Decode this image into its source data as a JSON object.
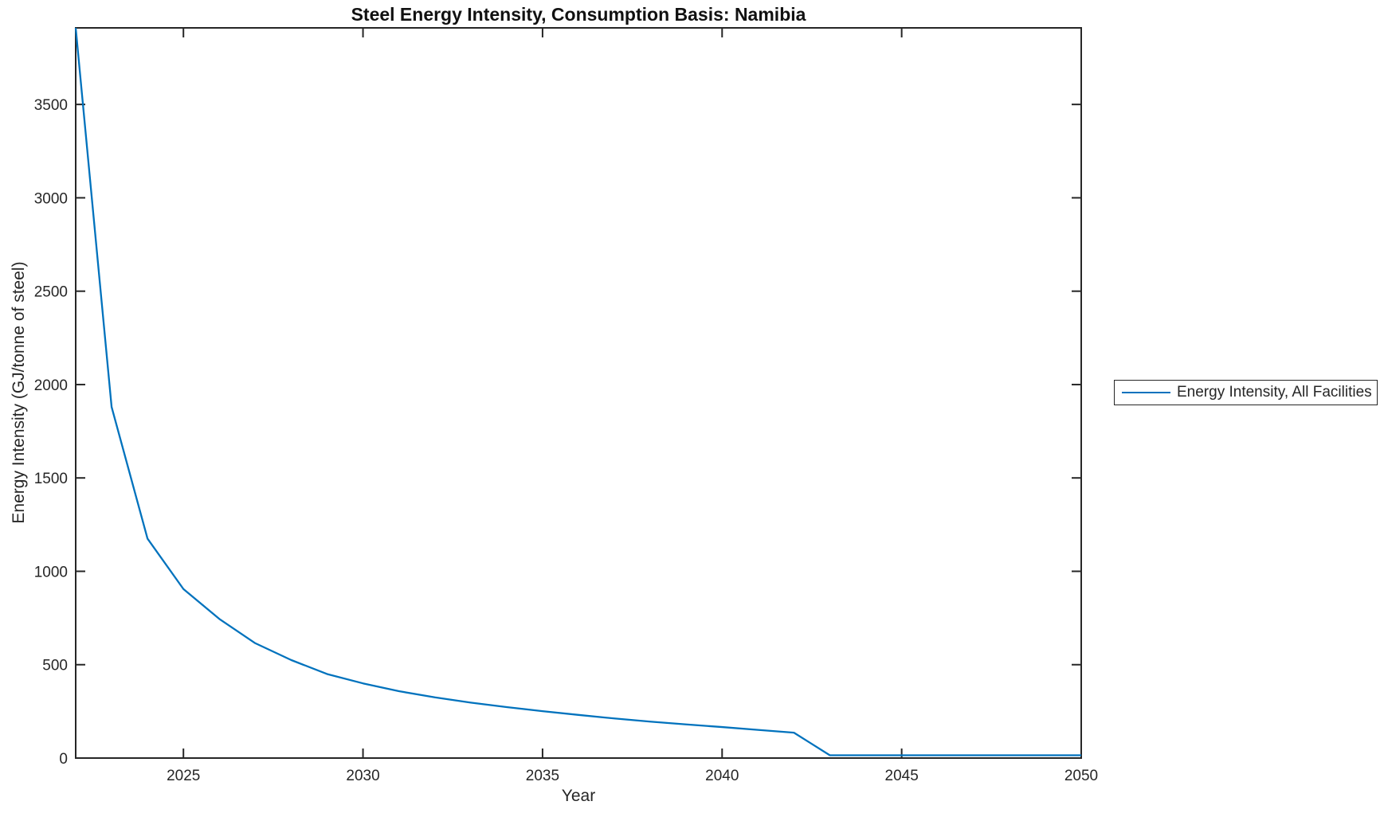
{
  "chart_data": {
    "type": "line",
    "title": "Steel Energy Intensity, Consumption Basis: Namibia",
    "xlabel": "Year",
    "ylabel": "Energy Intensity (GJ/tonne of steel)",
    "xlim": [
      2022,
      2050
    ],
    "ylim": [
      0,
      3910
    ],
    "xticks": [
      2025,
      2030,
      2035,
      2040,
      2045,
      2050
    ],
    "yticks": [
      0,
      500,
      1000,
      1500,
      2000,
      2500,
      3000,
      3500
    ],
    "grid": false,
    "legend_position": "right-outside",
    "axis_color": "#262626",
    "background_color": "#ffffff",
    "x": [
      2022,
      2023,
      2024,
      2025,
      2026,
      2027,
      2028,
      2029,
      2030,
      2031,
      2032,
      2033,
      2034,
      2035,
      2036,
      2037,
      2038,
      2039,
      2040,
      2041,
      2042,
      2043,
      2044,
      2045,
      2046,
      2047,
      2048,
      2049,
      2050
    ],
    "series": [
      {
        "name": "Energy Intensity, All Facilities",
        "color": "#0072BD",
        "values": [
          3910,
          1880,
          1175,
          905,
          745,
          615,
          525,
          450,
          400,
          358,
          325,
          297,
          273,
          251,
          231,
          212,
          195,
          180,
          166,
          151,
          136,
          15,
          15,
          15,
          15,
          15,
          15,
          15,
          15
        ]
      }
    ]
  }
}
